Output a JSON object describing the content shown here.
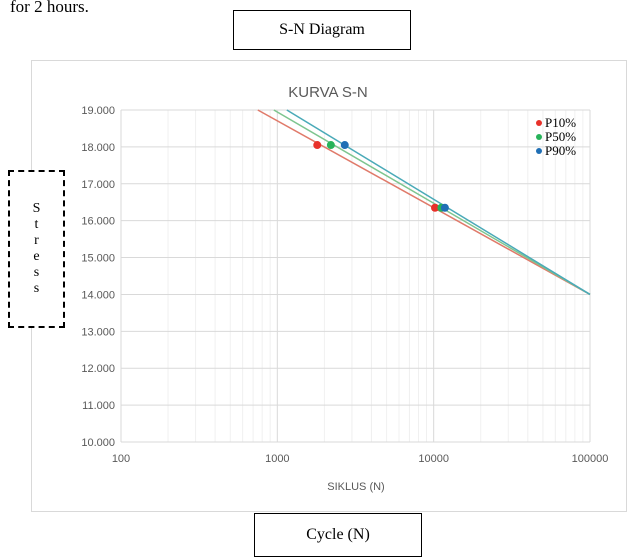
{
  "caption_fragment": "for 2 hours.",
  "label_boxes": {
    "top": "S-N Diagram",
    "bottom": "Cycle (N)"
  },
  "side_label": {
    "letters": [
      "S",
      "t",
      "r",
      "e",
      "s",
      "s"
    ]
  },
  "chart_data": {
    "type": "line",
    "title": "KURVA S-N",
    "xlabel": "SIKLUS (N)",
    "ylabel": "",
    "xscale": "log",
    "xlim": [
      100,
      100000
    ],
    "ylim": [
      10.0,
      19.0
    ],
    "x_ticks": [
      100,
      1000,
      10000,
      100000
    ],
    "x_tick_labels": [
      "100",
      "1000",
      "10000",
      "100000"
    ],
    "y_ticks": [
      10,
      11,
      12,
      13,
      14,
      15,
      16,
      17,
      18,
      19
    ],
    "y_tick_labels": [
      "10.000",
      "11.000",
      "12.000",
      "13.000",
      "14.000",
      "15.000",
      "16.000",
      "17.000",
      "18.000",
      "19.000"
    ],
    "grid": true,
    "legend_position": "top-right",
    "series": [
      {
        "name": "P10%",
        "color": "#e8312a",
        "line_color": "#e07a6a",
        "points": [
          [
            1800,
            18.05
          ],
          [
            10200,
            16.35
          ]
        ],
        "line": [
          [
            750,
            19.0
          ],
          [
            100000,
            14.0
          ]
        ]
      },
      {
        "name": "P50%",
        "color": "#27b35a",
        "line_color": "#7dc58f",
        "points": [
          [
            2200,
            18.05
          ],
          [
            11200,
            16.35
          ]
        ],
        "line": [
          [
            950,
            19.0
          ],
          [
            100000,
            14.0
          ]
        ]
      },
      {
        "name": "P90%",
        "color": "#1f6fb5",
        "line_color": "#4aaab8",
        "points": [
          [
            2700,
            18.05
          ],
          [
            11800,
            16.35
          ]
        ],
        "line": [
          [
            1150,
            19.0
          ],
          [
            100000,
            14.0
          ]
        ]
      }
    ]
  }
}
